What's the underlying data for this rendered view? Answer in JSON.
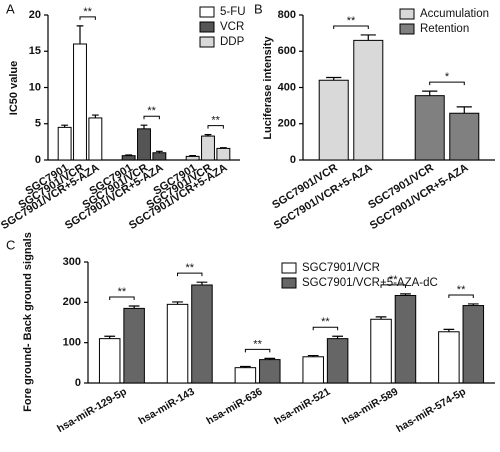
{
  "chart_data": [
    {
      "type": "bar",
      "panel": "A",
      "y_label": "IC50 value",
      "categories": [
        "SGC7901",
        "SGC7901/VCR",
        "SGC7901/VCR+5-AZA"
      ],
      "series": [
        {
          "name": "5-FU",
          "color": "#ffffff",
          "values": [
            4.5,
            16,
            5.8
          ],
          "errors": [
            0.3,
            2.5,
            0.4
          ]
        },
        {
          "name": "VCR",
          "color": "#555555",
          "values": [
            0.6,
            4.3,
            1.0
          ],
          "errors": [
            0.1,
            0.5,
            0.2
          ]
        },
        {
          "name": "DDP",
          "color": "#d9d9d9",
          "values": [
            0.5,
            3.3,
            1.6
          ],
          "errors": [
            0.1,
            0.2,
            0.1
          ]
        }
      ],
      "ylim": [
        0,
        20
      ],
      "yticks": [
        0,
        5,
        10,
        15,
        20
      ],
      "annotations": [
        "**",
        "**",
        "**"
      ]
    },
    {
      "type": "bar",
      "panel": "B",
      "y_label": "Luciferase intensity",
      "categories": [
        "SGC7901/VCR",
        "SGC7901/VCR+5-AZA"
      ],
      "series": [
        {
          "name": "Accumulation",
          "color": "#d9d9d9",
          "values": [
            440,
            660
          ],
          "errors": [
            15,
            30
          ]
        },
        {
          "name": "Retention",
          "color": "#808080",
          "values": [
            355,
            258
          ],
          "errors": [
            25,
            35
          ]
        }
      ],
      "ylim": [
        0,
        800
      ],
      "yticks": [
        0,
        200,
        400,
        600,
        800
      ],
      "annotations": [
        "**",
        "*"
      ]
    },
    {
      "type": "bar",
      "panel": "C",
      "y_label": "Fore ground- Back ground signals",
      "categories": [
        "hsa-miR-129-5p",
        "hsa-miR-143",
        "hsa-miR-636",
        "hsa-miR-521",
        "hsa-miR-589",
        "has-miR-574-5p"
      ],
      "series": [
        {
          "name": "SGC7901/VCR",
          "color": "#ffffff",
          "values": [
            110,
            195,
            38,
            65,
            158,
            127
          ],
          "errors": [
            6,
            6,
            3,
            3,
            6,
            6
          ]
        },
        {
          "name": "SGC7901/VCR+5-AZA-dC",
          "color": "#666666",
          "values": [
            185,
            243,
            58,
            110,
            217,
            192
          ],
          "errors": [
            6,
            7,
            3,
            6,
            4,
            4
          ]
        }
      ],
      "ylim": [
        0,
        300
      ],
      "yticks": [
        0,
        100,
        200,
        300
      ],
      "annotations": [
        "**",
        "**",
        "**",
        "**",
        "**",
        "**"
      ]
    }
  ]
}
